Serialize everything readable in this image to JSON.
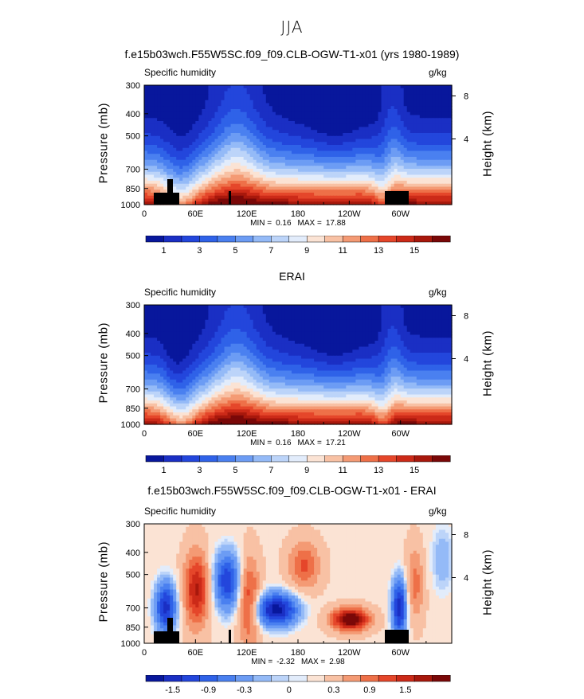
{
  "figure": {
    "title": "JJA"
  },
  "chart_data": [
    {
      "type": "heatmap",
      "title": "f.e15b03wch.F55W5SC.f09_f09.CLB-OGW-T1-x01 (yrs 1980-1989)",
      "variable": "Specific humidity",
      "units": "g/kg",
      "ylabel": "Pressure (mb)",
      "y2label": "Height (km)",
      "x_ticks": [
        "0",
        "60E",
        "120E",
        "180",
        "120W",
        "60W"
      ],
      "y_ticks": [
        "300",
        "400",
        "500",
        "700",
        "850",
        "1000"
      ],
      "y2_ticks": [
        "8",
        "4"
      ],
      "min_label": "MIN =",
      "min_value": "0.16",
      "max_label": "MAX =",
      "max_value": "17.88",
      "colorbar_labels": [
        "1",
        "3",
        "5",
        "7",
        "9",
        "11",
        "13",
        "15"
      ],
      "ylim": [
        1000,
        300
      ],
      "xlim": [
        0,
        360
      ]
    },
    {
      "type": "heatmap",
      "title": "ERAI",
      "variable": "Specific humidity",
      "units": "g/kg",
      "ylabel": "Pressure (mb)",
      "y2label": "Height (km)",
      "x_ticks": [
        "0",
        "60E",
        "120E",
        "180",
        "120W",
        "60W"
      ],
      "y_ticks": [
        "300",
        "400",
        "500",
        "700",
        "850",
        "1000"
      ],
      "y2_ticks": [
        "8",
        "4"
      ],
      "min_label": "MIN =",
      "min_value": "0.16",
      "max_label": "MAX =",
      "max_value": "17.21",
      "colorbar_labels": [
        "1",
        "3",
        "5",
        "7",
        "9",
        "11",
        "13",
        "15"
      ],
      "ylim": [
        1000,
        300
      ],
      "xlim": [
        0,
        360
      ]
    },
    {
      "type": "heatmap",
      "title": "f.e15b03wch.F55W5SC.f09_f09.CLB-OGW-T1-x01 - ERAI",
      "variable": "Specific humidity",
      "units": "g/kg",
      "ylabel": "Pressure (mb)",
      "y2label": "Height (km)",
      "x_ticks": [
        "0",
        "60E",
        "120E",
        "180",
        "120W",
        "60W"
      ],
      "y_ticks": [
        "300",
        "400",
        "500",
        "700",
        "850",
        "1000"
      ],
      "y2_ticks": [
        "8",
        "4"
      ],
      "min_label": "MIN =",
      "min_value": "-2.32",
      "max_label": "MAX =",
      "max_value": "2.98",
      "colorbar_labels": [
        "-1.5",
        "-0.9",
        "-0.3",
        "0",
        "0.3",
        "0.9",
        "1.5"
      ],
      "ylim": [
        1000,
        300
      ],
      "xlim": [
        0,
        360
      ]
    }
  ],
  "colors": {
    "scale": [
      "#08179c",
      "#1a2fc4",
      "#2346dc",
      "#2f62e8",
      "#4a80f0",
      "#6c9cf4",
      "#94baf7",
      "#bcd4f9",
      "#e2ecfb",
      "#fbe3d4",
      "#f8c1a4",
      "#f49a74",
      "#ee7048",
      "#e5462a",
      "#cc2a18",
      "#a8180c",
      "#7a0808"
    ],
    "topography": "#000000"
  }
}
